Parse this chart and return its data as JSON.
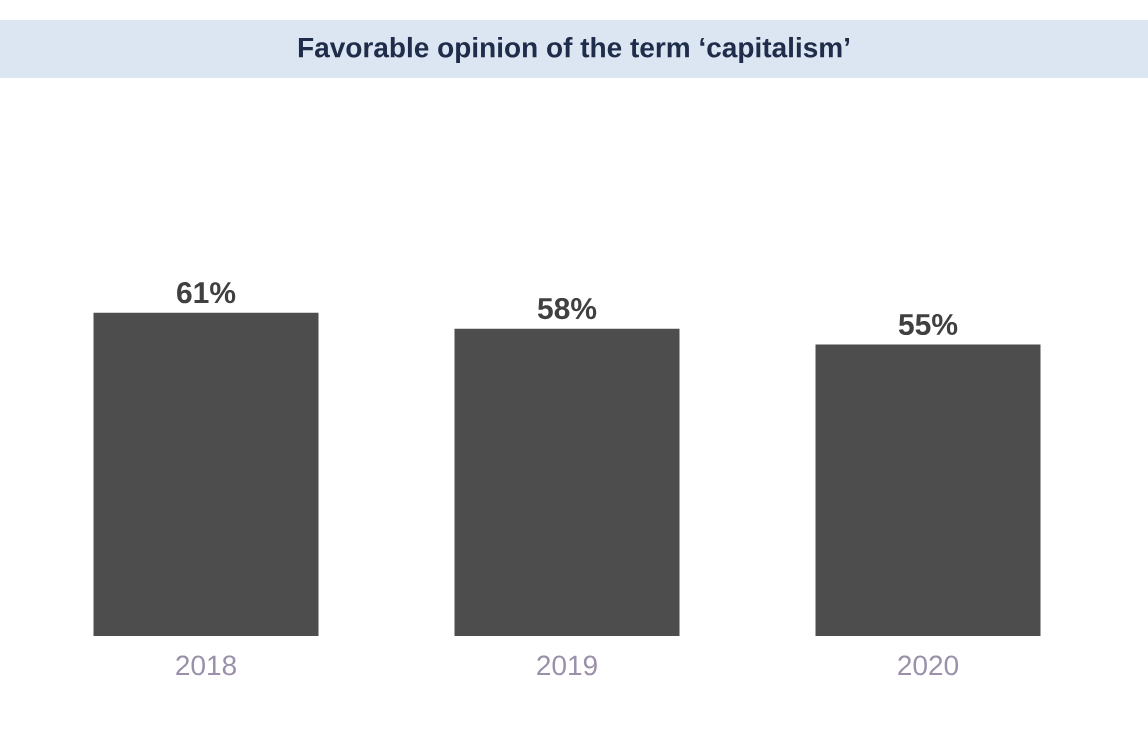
{
  "chart_data": {
    "type": "bar",
    "title": "Favorable opinion of the term ‘capitalism’",
    "categories": [
      "2018",
      "2019",
      "2020"
    ],
    "values": [
      61,
      58,
      55
    ],
    "value_labels": [
      "61%",
      "58%",
      "55%"
    ],
    "color": "#4d4d4d"
  }
}
